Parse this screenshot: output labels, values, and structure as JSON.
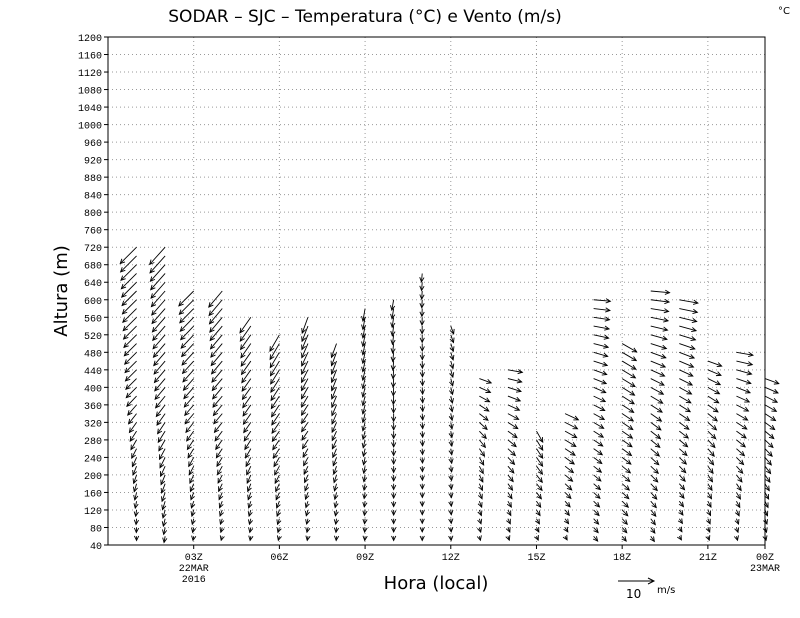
{
  "chart_data": {
    "type": "wind_barb",
    "title": "SODAR – SJC – Temperatura (°C) e Vento (m/s)",
    "corner_unit": "°C",
    "xlabel": "Hora (local)",
    "ylabel": "Altura (m)",
    "y_range": [
      40,
      1200
    ],
    "y_ticks": [
      40,
      80,
      120,
      160,
      200,
      240,
      280,
      320,
      360,
      400,
      440,
      480,
      520,
      560,
      600,
      640,
      680,
      720,
      760,
      800,
      840,
      880,
      920,
      960,
      1000,
      1040,
      1080,
      1120,
      1160,
      1200
    ],
    "x_range_hours": [
      0,
      23
    ],
    "x_ticks": [
      {
        "hour": 3,
        "lines": [
          "03Z",
          "22MAR",
          "2016"
        ]
      },
      {
        "hour": 6,
        "lines": [
          "06Z"
        ]
      },
      {
        "hour": 9,
        "lines": [
          "09Z"
        ]
      },
      {
        "hour": 12,
        "lines": [
          "12Z"
        ]
      },
      {
        "hour": 15,
        "lines": [
          "15Z"
        ]
      },
      {
        "hour": 18,
        "lines": [
          "18Z"
        ]
      },
      {
        "hour": 21,
        "lines": [
          "21Z"
        ]
      },
      {
        "hour": 23,
        "lines": [
          "00Z",
          "23MAR"
        ]
      }
    ],
    "grid": true,
    "legend": {
      "value": "10",
      "unit": "m/s",
      "reference_speed": 10
    },
    "profiles": [
      {
        "hour": 1,
        "top": 720,
        "bottom_dir": 180,
        "mid_dir": 225,
        "top_dir": 225,
        "speed_low": 2,
        "speed_high": 11
      },
      {
        "hour": 2,
        "top": 720,
        "bottom_dir": 190,
        "mid_dir": 220,
        "top_dir": 222,
        "speed_low": 3,
        "speed_high": 11
      },
      {
        "hour": 3,
        "top": 620,
        "bottom_dir": 190,
        "mid_dir": 220,
        "top_dir": 225,
        "speed_low": 2,
        "speed_high": 10
      },
      {
        "hour": 4,
        "top": 620,
        "bottom_dir": 195,
        "mid_dir": 220,
        "top_dir": 220,
        "speed_low": 2,
        "speed_high": 10
      },
      {
        "hour": 5,
        "top": 560,
        "bottom_dir": 190,
        "mid_dir": 215,
        "top_dir": 215,
        "speed_low": 2,
        "speed_high": 9
      },
      {
        "hour": 6,
        "top": 520,
        "bottom_dir": 195,
        "mid_dir": 215,
        "top_dir": 210,
        "speed_low": 2,
        "speed_high": 9
      },
      {
        "hour": 7,
        "top": 560,
        "bottom_dir": 190,
        "mid_dir": 215,
        "top_dir": 200,
        "speed_low": 2,
        "speed_high": 8
      },
      {
        "hour": 8,
        "top": 500,
        "bottom_dir": 185,
        "mid_dir": 205,
        "top_dir": 200,
        "speed_low": 2,
        "speed_high": 7
      },
      {
        "hour": 9,
        "top": 580,
        "bottom_dir": 185,
        "mid_dir": 195,
        "top_dir": 190,
        "speed_low": 2,
        "speed_high": 6
      },
      {
        "hour": 10,
        "top": 600,
        "bottom_dir": 180,
        "mid_dir": 180,
        "top_dir": 190,
        "speed_low": 2,
        "speed_high": 5
      },
      {
        "hour": 11,
        "top": 660,
        "bottom_dir": 180,
        "mid_dir": 175,
        "top_dir": 185,
        "speed_low": 2,
        "speed_high": 4
      },
      {
        "hour": 12,
        "top": 540,
        "bottom_dir": 175,
        "mid_dir": 170,
        "top_dir": 160,
        "speed_low": 2,
        "speed_high": 4
      },
      {
        "hour": 13,
        "top": 420,
        "bottom_dir": 165,
        "mid_dir": 150,
        "top_dir": 110,
        "speed_low": 2,
        "speed_high": 6
      },
      {
        "hour": 14,
        "top": 440,
        "bottom_dir": 160,
        "mid_dir": 135,
        "top_dir": 100,
        "speed_low": 2,
        "speed_high": 7
      },
      {
        "hour": 15,
        "top": 300,
        "bottom_dir": 155,
        "mid_dir": 140,
        "top_dir": 150,
        "speed_low": 2,
        "speed_high": 6
      },
      {
        "hour": 16,
        "top": 340,
        "bottom_dir": 150,
        "mid_dir": 130,
        "top_dir": 115,
        "speed_low": 2,
        "speed_high": 7
      },
      {
        "hour": 17,
        "top": 600,
        "bottom_dir": 140,
        "mid_dir": 120,
        "top_dir": 95,
        "speed_low": 3,
        "speed_high": 8
      },
      {
        "hour": 18,
        "top": 500,
        "bottom_dir": 140,
        "mid_dir": 125,
        "top_dir": 120,
        "speed_low": 3,
        "speed_high": 8
      },
      {
        "hour": 19,
        "top": 620,
        "bottom_dir": 145,
        "mid_dir": 125,
        "top_dir": 95,
        "speed_low": 3,
        "speed_high": 9
      },
      {
        "hour": 20,
        "top": 600,
        "bottom_dir": 150,
        "mid_dir": 125,
        "top_dir": 100,
        "speed_low": 2,
        "speed_high": 9
      },
      {
        "hour": 21,
        "top": 460,
        "bottom_dir": 160,
        "mid_dir": 140,
        "top_dir": 110,
        "speed_low": 2,
        "speed_high": 7
      },
      {
        "hour": 22,
        "top": 480,
        "bottom_dir": 165,
        "mid_dir": 130,
        "top_dir": 100,
        "speed_low": 2,
        "speed_high": 8
      },
      {
        "hour": 23,
        "top": 420,
        "bottom_dir": 165,
        "mid_dir": 140,
        "top_dir": 110,
        "speed_low": 2,
        "speed_high": 7
      }
    ]
  }
}
